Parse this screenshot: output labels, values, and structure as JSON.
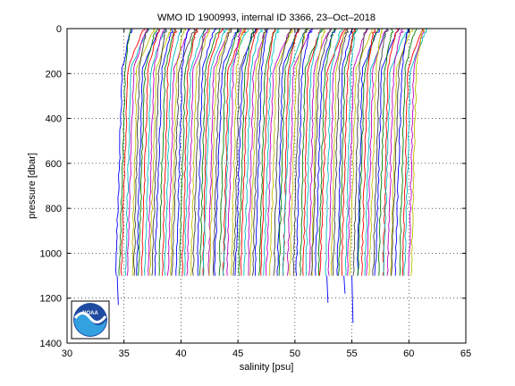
{
  "chart_data": {
    "type": "line",
    "title": "WMO ID 1900993, internal ID 3366, 23–Oct–2018",
    "xlabel": "salinity [psu]",
    "ylabel": "pressure [dbar]",
    "xlim": [
      30,
      65
    ],
    "ylim": [
      1400,
      0
    ],
    "y_reversed": true,
    "grid": true,
    "x_ticks": [
      30,
      35,
      40,
      45,
      50,
      55,
      60,
      65
    ],
    "y_ticks": [
      0,
      200,
      400,
      600,
      800,
      1000,
      1200,
      1400
    ],
    "profile_count": 104,
    "profile_offset_psu": 0.25,
    "first_profile_deep_salinity": 34.4,
    "last_profile_deep_salinity": 60.2,
    "profile_max_pressure": 1100,
    "series_colors": [
      "#0000ff",
      "#008000",
      "#ff0000",
      "#00bfbf",
      "#bf00bf",
      "#bfbf00",
      "#404040"
    ],
    "logo": "noaa-logo"
  }
}
